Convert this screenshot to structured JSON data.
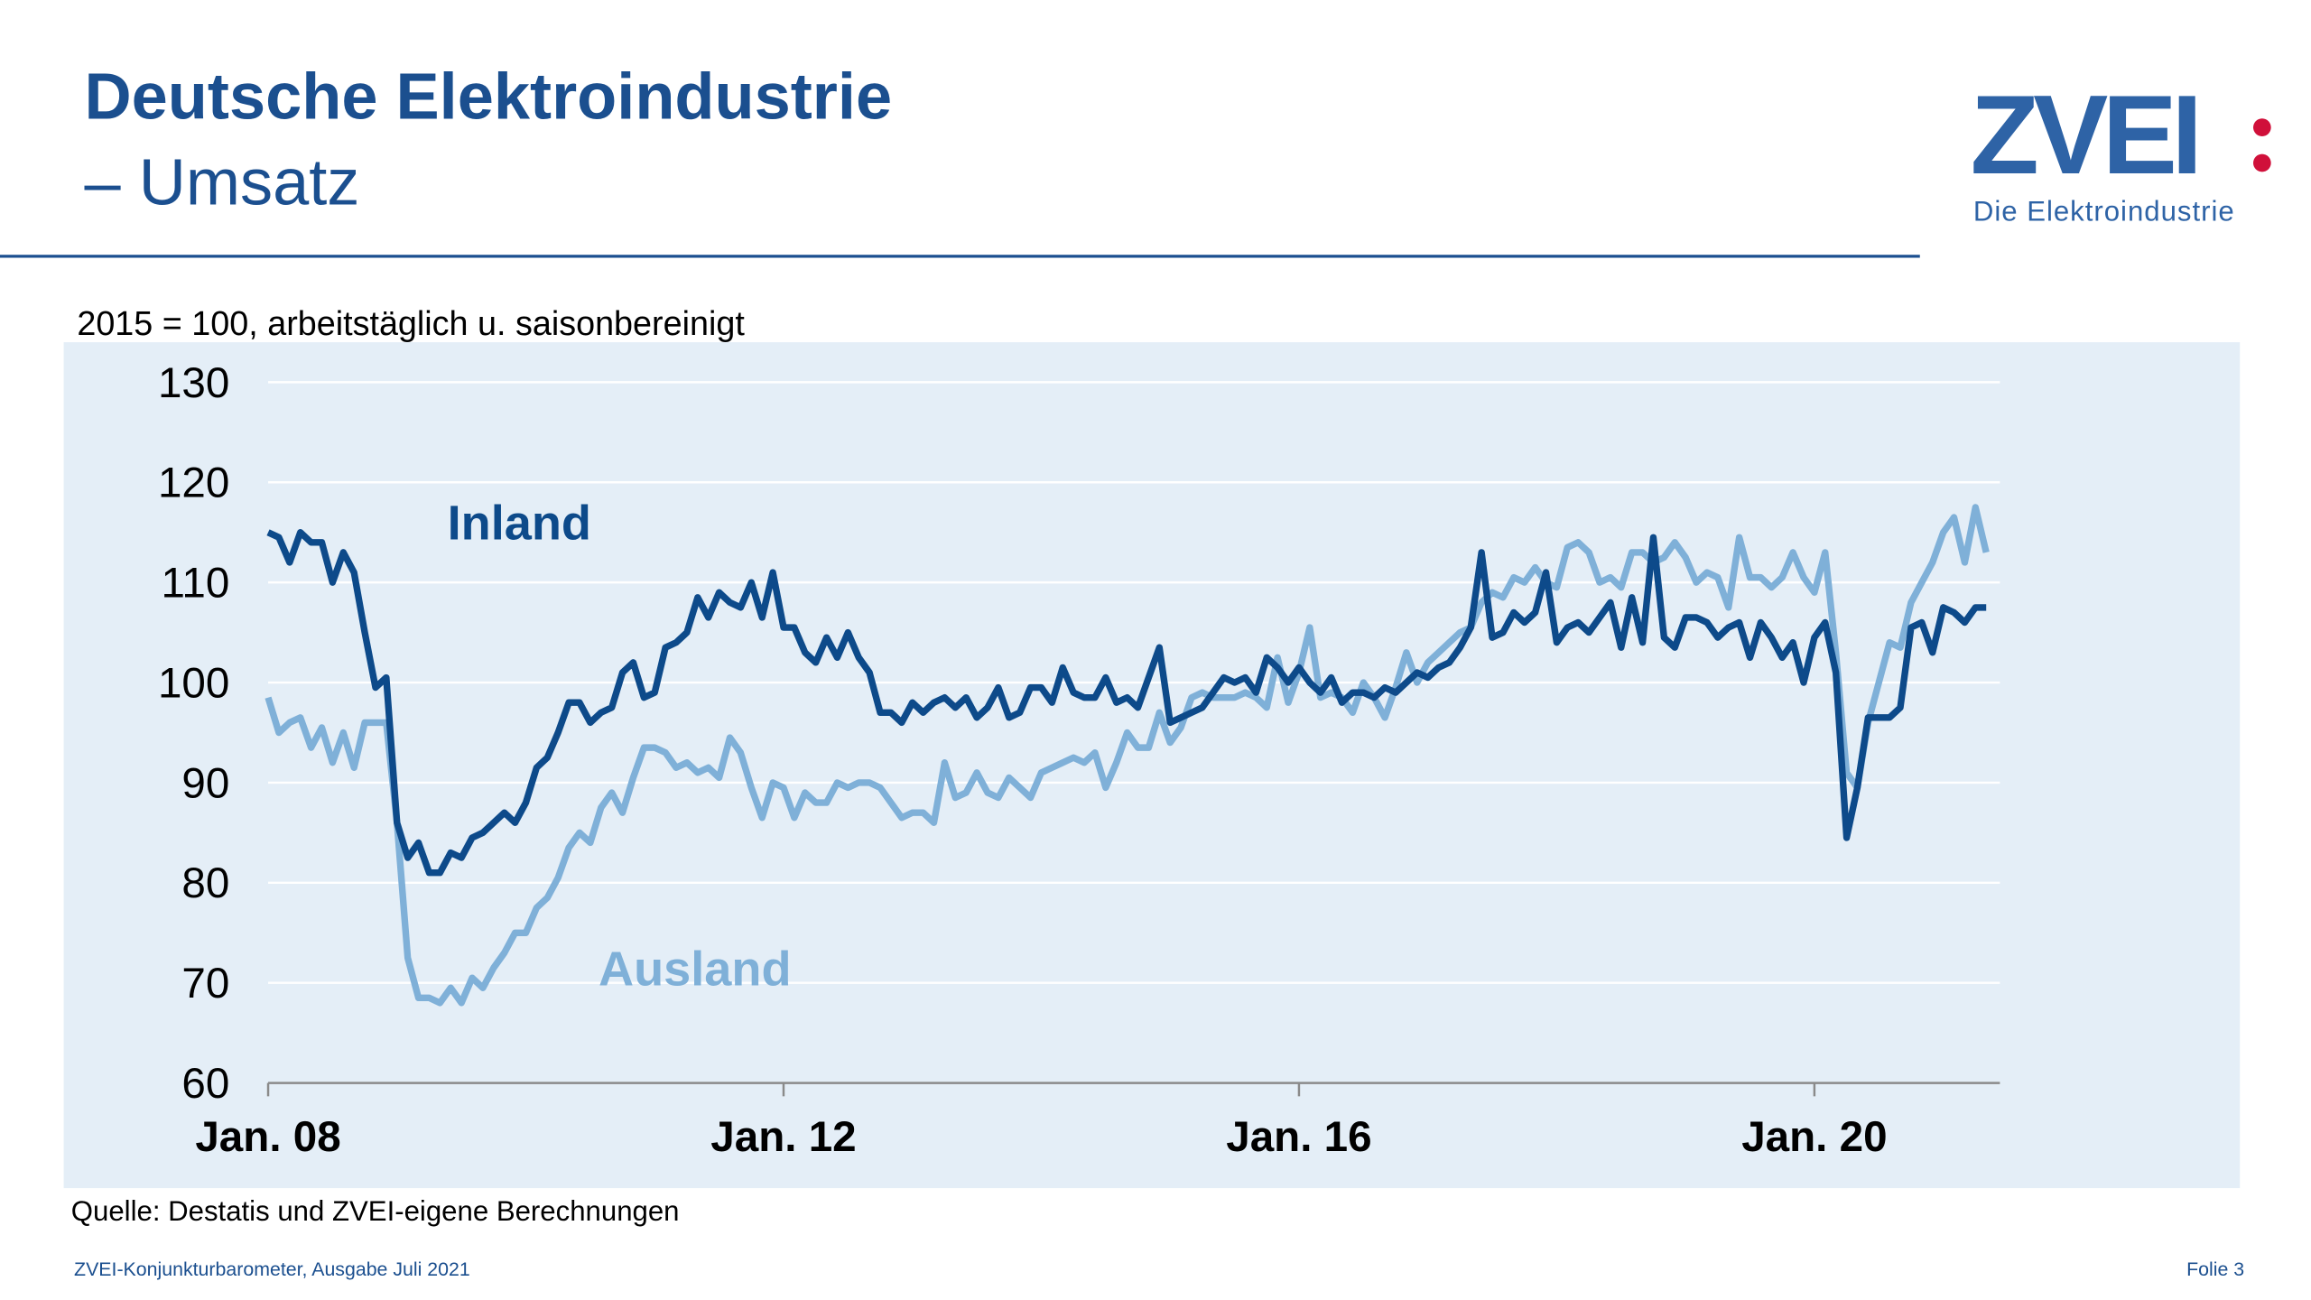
{
  "header": {
    "title": "Deutsche Elektroindustrie",
    "subtitle": "– Umsatz"
  },
  "logo": {
    "name": "ZVEI",
    "tagline": "Die Elektroindustrie"
  },
  "footer": {
    "left": "ZVEI-Konjunkturbarometer, Ausgabe Juli 2021",
    "right": "Folie 3"
  },
  "chart_data": {
    "type": "line",
    "subtitle": "2015 = 100, arbeitstäglich u. saisonbereinigt",
    "source": "Quelle: Destatis und ZVEI-eigene Berechnungen",
    "categories": [
      "Jan. 08",
      null,
      null,
      null,
      null,
      null,
      null,
      null,
      null,
      null,
      null,
      null,
      null,
      null,
      null,
      null,
      null,
      null,
      null,
      null,
      null,
      null,
      null,
      null,
      null,
      null,
      null,
      null,
      null,
      null,
      null,
      null,
      null,
      null,
      null,
      null,
      null,
      null,
      null,
      null,
      null,
      null,
      null,
      null,
      null,
      null,
      null,
      null,
      "Jan. 12",
      null,
      null,
      null,
      null,
      null,
      null,
      null,
      null,
      null,
      null,
      null,
      null,
      null,
      null,
      null,
      null,
      null,
      null,
      null,
      null,
      null,
      null,
      null,
      null,
      null,
      null,
      null,
      null,
      null,
      null,
      null,
      null,
      null,
      null,
      null,
      null,
      null,
      null,
      null,
      null,
      null,
      null,
      null,
      null,
      null,
      null,
      null,
      "Jan. 16",
      null,
      null,
      null,
      null,
      null,
      null,
      null,
      null,
      null,
      null,
      null,
      null,
      null,
      null,
      null,
      null,
      null,
      null,
      null,
      null,
      null,
      null,
      null,
      null,
      null,
      null,
      null,
      null,
      null,
      null,
      null,
      null,
      null,
      null,
      null,
      null,
      null,
      null,
      null,
      null,
      null,
      null,
      null,
      null,
      null,
      null,
      null,
      "Jan. 20",
      null,
      null,
      null,
      null,
      null,
      null,
      null,
      null,
      null,
      null,
      null,
      null,
      null,
      null,
      null,
      null
    ],
    "ylim": [
      60,
      130
    ],
    "yticks": [
      60,
      70,
      80,
      90,
      100,
      110,
      120,
      130
    ],
    "grid": true,
    "series": [
      {
        "name": "Inland",
        "color": "#0d4a8a",
        "values": [
          115,
          114.5,
          112,
          115,
          114,
          114,
          110,
          113,
          111,
          105,
          99.5,
          100.5,
          86,
          82.5,
          84,
          81,
          81,
          83,
          82.5,
          84.5,
          85,
          86,
          87,
          86,
          88,
          91.5,
          92.5,
          95,
          98,
          98,
          96,
          97,
          97.5,
          101,
          102,
          98.5,
          99,
          103.5,
          104,
          105,
          108.5,
          106.5,
          109,
          108,
          107.5,
          110,
          106.5,
          111,
          105.5,
          105.5,
          103,
          102,
          104.5,
          102.5,
          105,
          102.5,
          101,
          97,
          97,
          96,
          98,
          97,
          98,
          98.5,
          97.5,
          98.5,
          96.5,
          97.5,
          99.5,
          96.5,
          97,
          99.5,
          99.5,
          98,
          101.5,
          99,
          98.5,
          98.5,
          100.5,
          98,
          98.5,
          97.5,
          100.5,
          103.5,
          96,
          96.5,
          97,
          97.5,
          99,
          100.5,
          100,
          100.5,
          99,
          102.5,
          101.5,
          100,
          101.5,
          100,
          99,
          100.5,
          98,
          99,
          99,
          98.5,
          99.5,
          99,
          100,
          101,
          100.5,
          101.5,
          102,
          103.5,
          105.5,
          113,
          104.5,
          105,
          107,
          106,
          107,
          111,
          104,
          105.5,
          106,
          105,
          106.5,
          108,
          103.5,
          108.5,
          104,
          114.5,
          104.5,
          103.5,
          106.5,
          106.5,
          106,
          104.5,
          105.5,
          106,
          102.5,
          106,
          104.5,
          102.5,
          104,
          100,
          104.5,
          106,
          101,
          84.5,
          89.5,
          96.5,
          96.5,
          96.5,
          97.5,
          105.5,
          106,
          103,
          107.5,
          107,
          106,
          107.5,
          107.5
        ]
      },
      {
        "name": "Ausland",
        "color": "#7fb0d8",
        "values": [
          98.5,
          95,
          96,
          96.5,
          93.5,
          95.5,
          92,
          95,
          91.5,
          96,
          96,
          96,
          86,
          72.5,
          68.5,
          68.5,
          68,
          69.5,
          68,
          70.5,
          69.5,
          71.5,
          73,
          75,
          75,
          77.5,
          78.5,
          80.5,
          83.5,
          85,
          84,
          87.5,
          89,
          87,
          90.5,
          93.5,
          93.5,
          93,
          91.5,
          92,
          91,
          91.5,
          90.5,
          94.5,
          93,
          89.5,
          86.5,
          90,
          89.5,
          86.5,
          89,
          88,
          88,
          90,
          89.5,
          90,
          90,
          89.5,
          88,
          86.5,
          87,
          87,
          86,
          92,
          88.5,
          89,
          91,
          89,
          88.5,
          90.5,
          89.5,
          88.5,
          91,
          91.5,
          92,
          92.5,
          92,
          93,
          89.5,
          92,
          95,
          93.5,
          93.5,
          97,
          94,
          95.5,
          98.5,
          99,
          98.5,
          98.5,
          98.5,
          99,
          98.5,
          97.5,
          102.5,
          98,
          101,
          105.5,
          98.5,
          99,
          98.5,
          97,
          100,
          98.5,
          96.5,
          99.5,
          103,
          100,
          102,
          103,
          104,
          105,
          105.5,
          108,
          109,
          108.5,
          110.5,
          110,
          111.5,
          110,
          109.5,
          113.5,
          114,
          113,
          110,
          110.5,
          109.5,
          113,
          113,
          112,
          112.5,
          114,
          112.5,
          110,
          111,
          110.5,
          107.5,
          114.5,
          110.5,
          110.5,
          109.5,
          110.5,
          113,
          110.5,
          109,
          113,
          103,
          91,
          89.5,
          96,
          100,
          104,
          103.5,
          108,
          110,
          112,
          115,
          116.5,
          112,
          117.5,
          113
        ]
      }
    ]
  }
}
